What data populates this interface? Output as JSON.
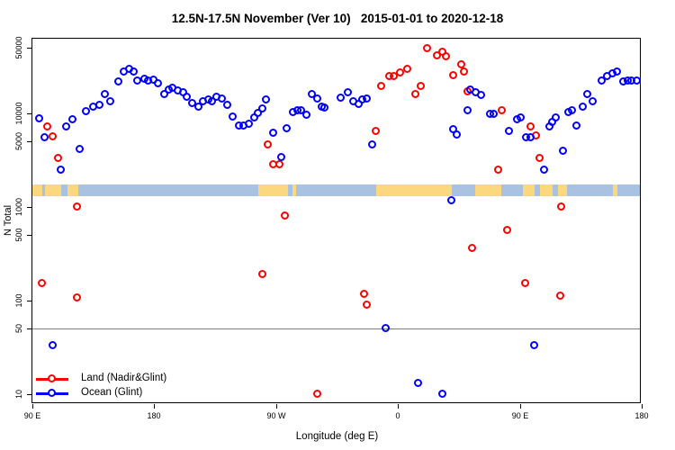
{
  "title": "12.5N-17.5N November (Ver 10)   2015-01-01 to 2020-12-18",
  "colors": {
    "land_series": "#ff0000",
    "ocean_series": "#0000ff",
    "map_ocean": "#a9c2e2",
    "map_land": "#fbd87e",
    "ref_line": "#7f7f7f",
    "axis": "#000000",
    "background": "#ffffff"
  },
  "legend": [
    {
      "label": "Land (Nadir&Glint)",
      "color": "#ff0000"
    },
    {
      "label": "Ocean (Glint)",
      "color": "#0000ff"
    }
  ],
  "chart_data": {
    "type": "scatter",
    "title": "12.5N-17.5N November (Ver 10)   2015-01-01 to 2020-12-18",
    "xlabel": "Longitude (deg E)",
    "ylabel": "N Total",
    "x_axis": {
      "note": "longitude increases eastward and wraps: 90E -> 180 -> 90W -> 0 -> 90E -> 180",
      "range_deg": [
        90,
        540
      ],
      "ticks_deg": [
        90,
        180,
        270,
        360,
        450,
        540
      ],
      "tick_labels": [
        "90 E",
        "180",
        "90 W",
        "0",
        "90 E",
        "180"
      ]
    },
    "y_axis": {
      "scale": "log10",
      "range": [
        8,
        63000
      ],
      "ticks": [
        10,
        50,
        100,
        500,
        1000,
        5000,
        10000,
        50000
      ],
      "tick_labels": [
        "10",
        "50",
        "100",
        "500",
        "1000",
        "5000",
        "10000",
        "50000"
      ]
    },
    "ref_line_y": 50,
    "map_band": {
      "value_top": 1750,
      "value_bottom": 1300,
      "land_segments_deg": [
        [
          90,
          97
        ],
        [
          99,
          111
        ],
        [
          116,
          124
        ],
        [
          257,
          279
        ],
        [
          282,
          285
        ],
        [
          344,
          400
        ],
        [
          417,
          436
        ],
        [
          452,
          461
        ],
        [
          465,
          474
        ],
        [
          478,
          485
        ],
        [
          519,
          522
        ]
      ]
    },
    "series": [
      {
        "name": "Land (Nadir&Glint)",
        "color": "#ff0000",
        "points": [
          [
            97,
            152
          ],
          [
            101,
            7200
          ],
          [
            105,
            5600
          ],
          [
            109,
            3300
          ],
          [
            123,
            1000
          ],
          [
            123,
            106
          ],
          [
            260,
            190
          ],
          [
            264,
            4600
          ],
          [
            268,
            2820
          ],
          [
            273,
            2820
          ],
          [
            277,
            800
          ],
          [
            301,
            10
          ],
          [
            335,
            118
          ],
          [
            337,
            90
          ],
          [
            344,
            6400
          ],
          [
            348,
            19400
          ],
          [
            354,
            24600
          ],
          [
            357,
            24600
          ],
          [
            362,
            27300
          ],
          [
            367,
            29900
          ],
          [
            373,
            15900
          ],
          [
            377,
            19400
          ],
          [
            382,
            48900
          ],
          [
            389,
            41100
          ],
          [
            393,
            44700
          ],
          [
            396,
            40200
          ],
          [
            401,
            25500
          ],
          [
            407,
            33400
          ],
          [
            409,
            27900
          ],
          [
            412,
            17100
          ],
          [
            415,
            360
          ],
          [
            434,
            2500
          ],
          [
            437,
            10700
          ],
          [
            441,
            560
          ],
          [
            454,
            152
          ],
          [
            458,
            7200
          ],
          [
            462,
            5700
          ],
          [
            465,
            3300
          ],
          [
            480,
            112
          ],
          [
            481,
            1000
          ]
        ]
      },
      {
        "name": "Ocean (Glint)",
        "color": "#0000ff",
        "points": [
          [
            95,
            8800
          ],
          [
            99,
            5500
          ],
          [
            105,
            33
          ],
          [
            111,
            2500
          ],
          [
            115,
            7200
          ],
          [
            120,
            8600
          ],
          [
            125,
            4100
          ],
          [
            130,
            10400
          ],
          [
            135,
            11600
          ],
          [
            140,
            12300
          ],
          [
            144,
            15900
          ],
          [
            148,
            13400
          ],
          [
            154,
            21800
          ],
          [
            158,
            27400
          ],
          [
            162,
            29300
          ],
          [
            165,
            27900
          ],
          [
            168,
            22300
          ],
          [
            173,
            23300
          ],
          [
            176,
            22300
          ],
          [
            180,
            22800
          ],
          [
            183,
            20900
          ],
          [
            188,
            15900
          ],
          [
            191,
            17800
          ],
          [
            194,
            18600
          ],
          [
            198,
            17400
          ],
          [
            202,
            16600
          ],
          [
            204,
            14900
          ],
          [
            208,
            12800
          ],
          [
            213,
            11800
          ],
          [
            216,
            13400
          ],
          [
            220,
            14000
          ],
          [
            223,
            13400
          ],
          [
            226,
            14900
          ],
          [
            230,
            14300
          ],
          [
            234,
            12100
          ],
          [
            238,
            9100
          ],
          [
            243,
            7300
          ],
          [
            246,
            7300
          ],
          [
            250,
            7700
          ],
          [
            254,
            8900
          ],
          [
            257,
            10000
          ],
          [
            260,
            11200
          ],
          [
            263,
            13900
          ],
          [
            268,
            6100
          ],
          [
            274,
            3400
          ],
          [
            278,
            6900
          ],
          [
            283,
            10200
          ],
          [
            286,
            10700
          ],
          [
            289,
            10700
          ],
          [
            293,
            9500
          ],
          [
            297,
            15900
          ],
          [
            301,
            14300
          ],
          [
            304,
            11800
          ],
          [
            306,
            11300
          ],
          [
            318,
            14700
          ],
          [
            323,
            16600
          ],
          [
            327,
            13400
          ],
          [
            331,
            12600
          ],
          [
            334,
            14000
          ],
          [
            337,
            14300
          ],
          [
            341,
            4600
          ],
          [
            351,
            50
          ],
          [
            375,
            13
          ],
          [
            393,
            10
          ],
          [
            400,
            1170
          ],
          [
            401,
            6700
          ],
          [
            404,
            5900
          ],
          [
            412,
            10700
          ],
          [
            414,
            17800
          ],
          [
            418,
            16600
          ],
          [
            422,
            15600
          ],
          [
            428,
            9700
          ],
          [
            431,
            9700
          ],
          [
            442,
            6400
          ],
          [
            448,
            8600
          ],
          [
            451,
            9000
          ],
          [
            455,
            5500
          ],
          [
            458,
            5500
          ],
          [
            461,
            33
          ],
          [
            468,
            2500
          ],
          [
            472,
            7200
          ],
          [
            474,
            8100
          ],
          [
            477,
            9000
          ],
          [
            482,
            3950
          ],
          [
            486,
            10200
          ],
          [
            489,
            10700
          ],
          [
            492,
            7300
          ],
          [
            497,
            11800
          ],
          [
            500,
            15900
          ],
          [
            504,
            13400
          ],
          [
            511,
            22300
          ],
          [
            515,
            24800
          ],
          [
            519,
            26200
          ],
          [
            522,
            27900
          ],
          [
            527,
            21800
          ],
          [
            530,
            22300
          ],
          [
            533,
            22300
          ],
          [
            537,
            22300
          ]
        ]
      }
    ]
  }
}
